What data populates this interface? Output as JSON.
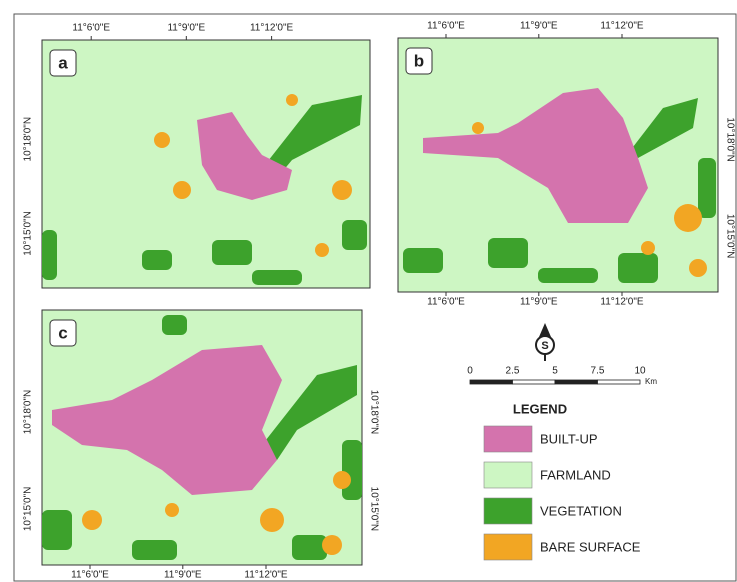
{
  "panels": [
    {
      "label": "a",
      "top": [
        "11°6'0\"E",
        "11°9'0\"E",
        "11°12'0\"E"
      ],
      "left": [
        "10°18'0\"N",
        "10°15'0\"N"
      ]
    },
    {
      "label": "b",
      "top": [
        "11°6'0\"E",
        "11°9'0\"E",
        "11°12'0\"E"
      ],
      "bottom": [
        "11°6'0\"E",
        "11°9'0\"E",
        "11°12'0\"E"
      ],
      "right": [
        "10°18'0\"N",
        "10°15'0\"N"
      ]
    },
    {
      "label": "c",
      "bottom": [
        "11°6'0\"E",
        "11°9'0\"E",
        "11°12'0\"E"
      ],
      "left": [
        "10°18'0\"N",
        "10°15'0\"N"
      ],
      "right": [
        "10°18'0\"N",
        "10°15'0\"N"
      ]
    }
  ],
  "scale_bar": {
    "ticks": [
      "0",
      "2.5",
      "5",
      "7.5",
      "10"
    ],
    "unit": "Km"
  },
  "legend": {
    "title": "LEGEND",
    "items": [
      {
        "label": "BUILT-UP",
        "color": "#d473ad"
      },
      {
        "label": "FARMLAND",
        "color": "#cdf6c3"
      },
      {
        "label": "VEGETATION",
        "color": "#3da22c"
      },
      {
        "label": "BARE SURFACE",
        "color": "#f2a623"
      }
    ]
  }
}
